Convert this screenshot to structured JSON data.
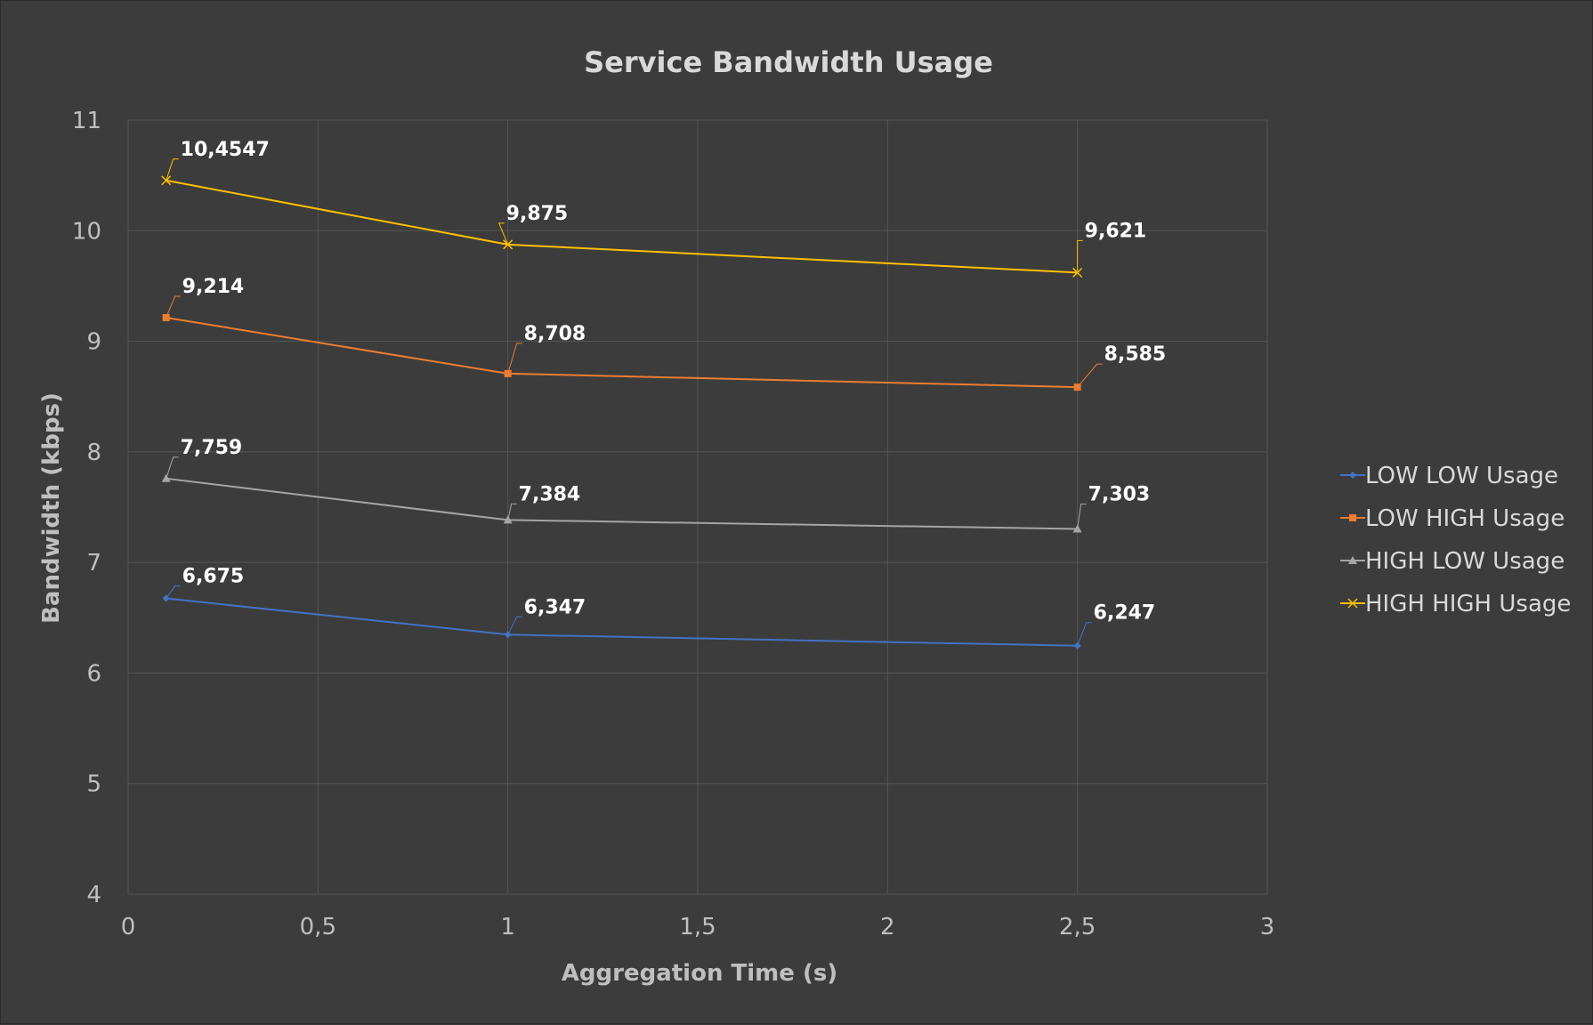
{
  "chart_data": {
    "type": "line",
    "title": "Service Bandwidth Usage",
    "xlabel": "Aggregation Time (s)",
    "ylabel": "Bandwidth (kbps)",
    "xlim": [
      0,
      3
    ],
    "ylim": [
      4,
      11
    ],
    "x_ticks": [
      "0",
      "0,5",
      "1",
      "1,5",
      "2",
      "2,5",
      "3"
    ],
    "y_ticks": [
      "4",
      "5",
      "6",
      "7",
      "8",
      "9",
      "10",
      "11"
    ],
    "grid": true,
    "legend_position": "right",
    "x": [
      0.1,
      1,
      2.5
    ],
    "series": [
      {
        "name": "LOW LOW Usage",
        "color": "#4472c4",
        "marker": "diamond",
        "values": [
          6.675,
          6.347,
          6.247
        ],
        "labels": [
          "6,675",
          "6,347",
          "6,247"
        ]
      },
      {
        "name": "LOW HIGH Usage",
        "color": "#ed7d31",
        "marker": "square",
        "values": [
          9.214,
          8.708,
          8.585
        ],
        "labels": [
          "9,214",
          "8,708",
          "8,585"
        ]
      },
      {
        "name": "HIGH LOW Usage",
        "color": "#a5a5a5",
        "marker": "triangle",
        "values": [
          7.759,
          7.384,
          7.303
        ],
        "labels": [
          "7,759",
          "7,384",
          "7,303"
        ]
      },
      {
        "name": "HIGH HIGH Usage",
        "color": "#ffc000",
        "marker": "x",
        "values": [
          10.4547,
          9.875,
          9.621
        ],
        "labels": [
          "10,4547",
          "9,875",
          "9,621"
        ]
      }
    ]
  }
}
